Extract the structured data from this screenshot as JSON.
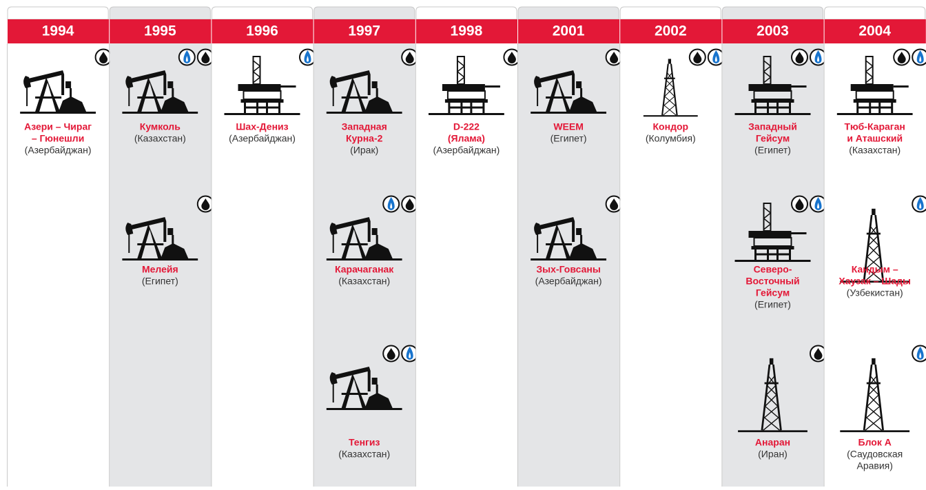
{
  "columns": [
    {
      "year": "1994",
      "projects": [
        {
          "name": [
            "Азери – Чираг",
            "– Гюнешли"
          ],
          "country": "(Азербайджан)"
        }
      ]
    },
    {
      "year": "1995",
      "projects": [
        {
          "name": [
            "Кумколь"
          ],
          "country": "(Казахстан)"
        },
        {
          "name": [
            "Мелейя"
          ],
          "country": "(Египет)"
        }
      ]
    },
    {
      "year": "1996",
      "projects": [
        {
          "name": [
            "Шах-Дениз"
          ],
          "country": "(Азербайджан)"
        }
      ]
    },
    {
      "year": "1997",
      "projects": [
        {
          "name": [
            "Западная",
            "Курна-2"
          ],
          "country": "(Ирак)"
        },
        {
          "name": [
            "Карачаганак"
          ],
          "country": "(Казахстан)"
        },
        {
          "name": [
            "Тенгиз"
          ],
          "country": "(Казахстан)"
        }
      ]
    },
    {
      "year": "1998",
      "projects": [
        {
          "name": [
            "D-222",
            "(Ялама)"
          ],
          "country": "(Азербайджан)"
        }
      ]
    },
    {
      "year": "2001",
      "projects": [
        {
          "name": [
            "WEEM"
          ],
          "country": "(Египет)"
        },
        {
          "name": [
            "Зых-Говсаны"
          ],
          "country": "(Азербайджан)"
        }
      ]
    },
    {
      "year": "2002",
      "projects": [
        {
          "name": [
            "Кондор"
          ],
          "country": "(Колумбия)"
        }
      ]
    },
    {
      "year": "2003",
      "projects": [
        {
          "name": [
            "Западный",
            "Гейсум"
          ],
          "country": "(Египет)"
        },
        {
          "name": [
            "Северо-",
            "Восточный",
            "Гейсум"
          ],
          "country": "(Египет)"
        },
        {
          "name": [
            "Анаран"
          ],
          "country": "(Иран)"
        }
      ]
    },
    {
      "year": "2004",
      "projects": [
        {
          "name": [
            "Тюб-Караган",
            "и Аташский"
          ],
          "country": "(Казахстан)"
        },
        {
          "name": [
            "Кандым –",
            "Хаузак – Шады"
          ],
          "country": "(Узбекистан)"
        },
        {
          "name": [
            "Блок А"
          ],
          "country": [
            "(Саудовская",
            "Аравия)"
          ]
        }
      ]
    }
  ]
}
